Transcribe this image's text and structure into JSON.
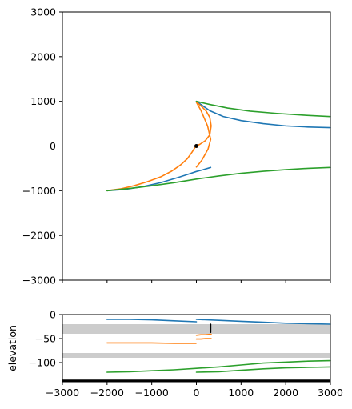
{
  "chart_data": [
    {
      "type": "line",
      "title": "",
      "xlabel": "",
      "ylabel": "",
      "xlim": [
        -3000,
        3000
      ],
      "ylim": [
        -3000,
        3000
      ],
      "x_ticks": [
        -3000,
        -2000,
        -1000,
        0,
        1000,
        2000,
        3000
      ],
      "x_tick_labels_shown": false,
      "y_ticks": [
        -3000,
        -2000,
        -1000,
        0,
        1000,
        2000,
        3000
      ],
      "y_tick_labels": [
        "−3000",
        "−2000",
        "−1000",
        "0",
        "1000",
        "2000",
        "3000"
      ],
      "grid": false,
      "legend": "none",
      "series": [
        {
          "color": "#1f77b4",
          "x": [
            -2000,
            -1600,
            -1200,
            -800,
            -400,
            -150,
            0,
            150,
            320
          ],
          "y": [
            -1000,
            -970,
            -910,
            -820,
            -700,
            -620,
            -570,
            -530,
            -480
          ]
        },
        {
          "color": "#1f77b4",
          "x": [
            0,
            100,
            300,
            600,
            1000,
            1500,
            2000,
            2500,
            3000
          ],
          "y": [
            1000,
            930,
            790,
            660,
            570,
            500,
            450,
            425,
            410
          ]
        },
        {
          "color": "#ff7f0e",
          "x": [
            -2000,
            -1700,
            -1400,
            -1100,
            -800,
            -550,
            -350,
            -200,
            -100,
            -30,
            0,
            80,
            200,
            300,
            330,
            300,
            220,
            120,
            40,
            0,
            10,
            100,
            250,
            320,
            260,
            120,
            0
          ],
          "y": [
            -1000,
            -960,
            -890,
            -800,
            -690,
            -560,
            -420,
            -280,
            -140,
            -30,
            0,
            40,
            120,
            250,
            450,
            640,
            780,
            880,
            950,
            980,
            960,
            800,
            450,
            150,
            -70,
            -320,
            -470
          ]
        },
        {
          "color": "#2ca02c",
          "x": [
            0,
            300,
            700,
            1200,
            1800,
            2400,
            3000
          ],
          "y": [
            1000,
            930,
            850,
            780,
            730,
            690,
            660
          ]
        },
        {
          "color": "#2ca02c",
          "x": [
            -2000,
            -1500,
            -1000,
            -500,
            0,
            500,
            1000,
            1500,
            2000,
            2500,
            3000
          ],
          "y": [
            -1000,
            -950,
            -890,
            -820,
            -740,
            -670,
            -610,
            -565,
            -530,
            -500,
            -480
          ]
        }
      ],
      "markers": [
        {
          "x": 0,
          "y": 0,
          "color": "#000000"
        }
      ]
    },
    {
      "type": "line",
      "title": "",
      "xlabel": "",
      "ylabel": "elevation",
      "xlim": [
        -3000,
        3000
      ],
      "ylim": [
        -140,
        0
      ],
      "x_ticks": [
        -3000,
        -2000,
        -1000,
        0,
        1000,
        2000,
        3000
      ],
      "x_tick_labels": [
        "−3000",
        "−2000",
        "−1000",
        "0",
        "1000",
        "2000",
        "3000"
      ],
      "y_ticks": [
        -100,
        -50,
        0
      ],
      "y_tick_labels": [
        "−100",
        "−50",
        "0"
      ],
      "grid": false,
      "legend": "none",
      "bands": [
        {
          "y0": -40,
          "y1": -20,
          "color": "#cccccc"
        },
        {
          "y0": -90,
          "y1": -80,
          "color": "#cccccc"
        }
      ],
      "baseline": {
        "y": -138,
        "color": "#000000"
      },
      "series": [
        {
          "color": "#1f77b4",
          "x": [
            -2000,
            -1500,
            -1000,
            -500,
            0
          ],
          "y": [
            -10,
            -10,
            -11,
            -13,
            -15
          ]
        },
        {
          "color": "#1f77b4",
          "x": [
            0,
            500,
            1000,
            1500,
            2000,
            2500,
            3000
          ],
          "y": [
            -10,
            -12,
            -14,
            -16,
            -18,
            -19,
            -20
          ]
        },
        {
          "color": "#ff7f0e",
          "x": [
            -2000,
            -1500,
            -1000,
            -500,
            -10
          ],
          "y": [
            -59,
            -59,
            -59,
            -60,
            -60
          ]
        },
        {
          "color": "#ff7f0e",
          "x": [
            0,
            100,
            200,
            330
          ],
          "y": [
            -43,
            -42,
            -42,
            -41
          ]
        },
        {
          "color": "#ff7f0e",
          "x": [
            0,
            100,
            200,
            330
          ],
          "y": [
            -51,
            -51,
            -50,
            -50
          ]
        },
        {
          "color": "#2ca02c",
          "x": [
            -2000,
            -1500,
            -1000,
            -500,
            0,
            500,
            1000,
            1500,
            2000,
            2500,
            3000
          ],
          "y": [
            -120,
            -119,
            -117,
            -115,
            -112,
            -109,
            -105,
            -101,
            -99,
            -97,
            -96
          ]
        },
        {
          "color": "#2ca02c",
          "x": [
            0,
            500,
            1000,
            1500,
            2000,
            2500,
            3000
          ],
          "y": [
            -120,
            -119,
            -116,
            -113,
            -111,
            -110,
            -109
          ]
        },
        {
          "color": "#000000",
          "x": [
            320,
            320
          ],
          "y": [
            -20,
            -37
          ]
        }
      ]
    }
  ]
}
